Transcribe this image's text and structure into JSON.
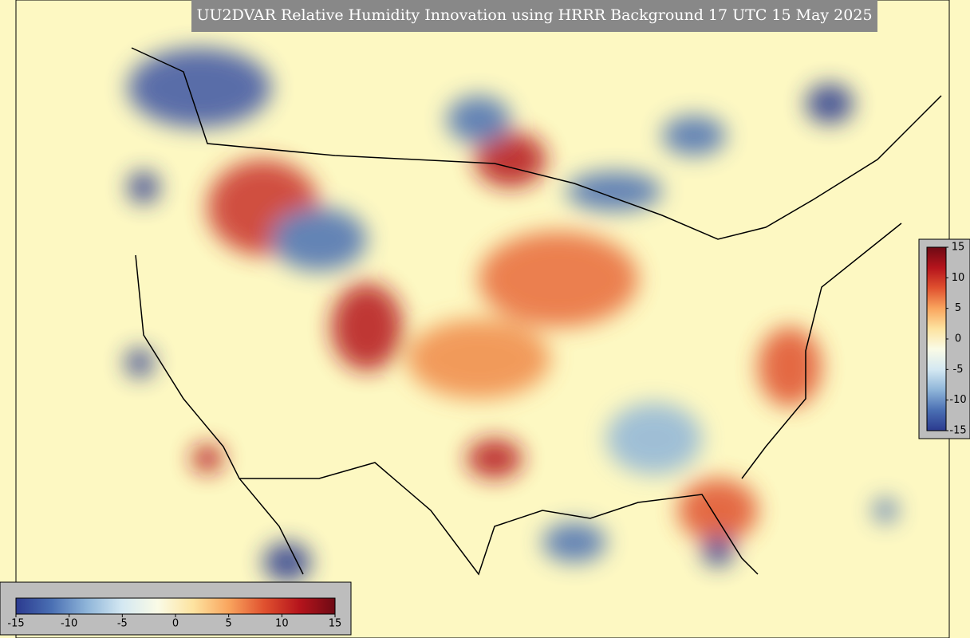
{
  "title": "UU2DVAR Relative Humidity Innovation using HRRR Background 17 UTC 15 May 2025",
  "colorbars": [
    {
      "orientation": "horizontal",
      "lim": [
        -15,
        15
      ],
      "ticks": [
        -15,
        -10,
        -5,
        0,
        5,
        10,
        15
      ]
    },
    {
      "orientation": "vertical",
      "lim": [
        -15,
        15
      ],
      "ticks": [
        15,
        10,
        5,
        0,
        -5,
        -10,
        -15
      ]
    }
  ],
  "colors": [
    "#2b3a8f",
    "#4a6fb3",
    "#8fb5d9",
    "#d4e8f2",
    "#fafbe6",
    "#fde3a0",
    "#f9a55e",
    "#e0512f",
    "#b5141c",
    "#6e0a14"
  ]
}
